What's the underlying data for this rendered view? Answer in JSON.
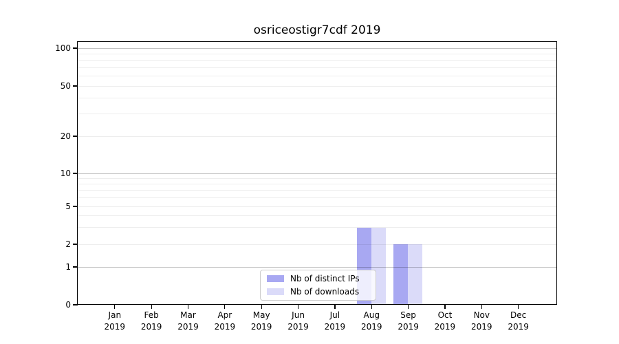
{
  "figure": {
    "background": "#ffffff"
  },
  "chart_data": {
    "type": "bar",
    "title": "osriceostigr7cdf 2019",
    "categories": [
      "Jan",
      "Feb",
      "Mar",
      "Apr",
      "May",
      "Jun",
      "Jul",
      "Aug",
      "Sep",
      "Oct",
      "Nov",
      "Dec"
    ],
    "category_year": "2019",
    "series": [
      {
        "name": "Nb of distinct IPs",
        "color": "#a8a8f2",
        "values": [
          0,
          0,
          0,
          0,
          0,
          0,
          0,
          3,
          2,
          0,
          0,
          0
        ]
      },
      {
        "name": "Nb of downloads",
        "color": "#dbdbf9",
        "values": [
          0,
          0,
          0,
          0,
          0,
          0,
          0,
          3,
          2,
          0,
          0,
          0
        ]
      }
    ],
    "xlabel": "",
    "ylabel": "",
    "yscale": "symlog",
    "yticks": [
      0,
      1,
      2,
      5,
      10,
      20,
      50,
      100
    ],
    "ylim": [
      0,
      100
    ],
    "grid": "horizontal, log minor + major lines",
    "legend_position": "bottom-center-inside"
  }
}
